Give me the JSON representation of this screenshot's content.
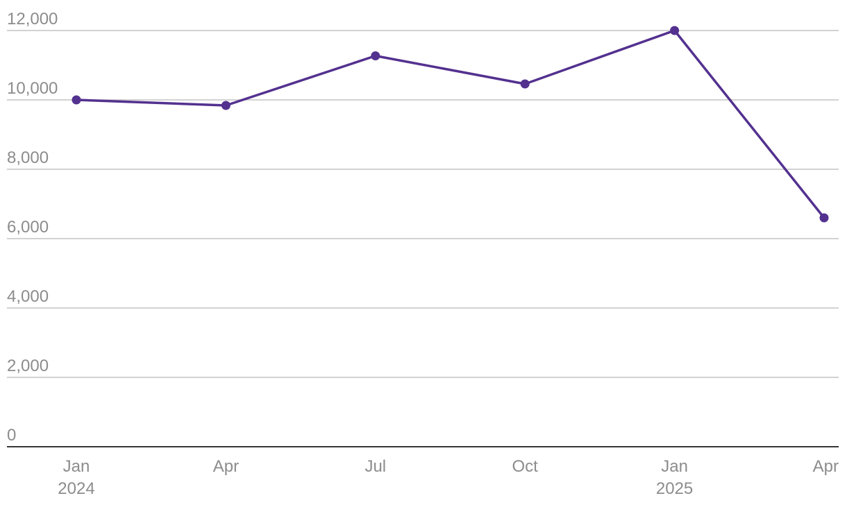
{
  "chart_data": {
    "type": "line",
    "title": "",
    "xlabel": "",
    "ylabel": "",
    "x": [
      "2024-01",
      "2024-04",
      "2024-07",
      "2024-10",
      "2025-01",
      "2025-04"
    ],
    "x_tick_labels": [
      {
        "month": "Jan",
        "year": "2024"
      },
      {
        "month": "Apr",
        "year": ""
      },
      {
        "month": "Jul",
        "year": ""
      },
      {
        "month": "Oct",
        "year": ""
      },
      {
        "month": "Jan",
        "year": "2025"
      },
      {
        "month": "Apr",
        "year": ""
      }
    ],
    "series": [
      {
        "values": [
          10000,
          9840,
          11270,
          10460,
          12000,
          6600
        ]
      }
    ],
    "ylim": [
      0,
      12000
    ],
    "y_ticks": [
      0,
      2000,
      4000,
      6000,
      8000,
      10000,
      12000
    ],
    "y_tick_labels": [
      "0",
      "2,000",
      "4,000",
      "6,000",
      "8,000",
      "10,000",
      "12,000"
    ],
    "grid": true,
    "legend": "none",
    "colors": {
      "series": "#53318f",
      "grid": "#c4c4c4",
      "axis": "#1a1a1a",
      "tick_text": "#8c8c8c"
    }
  }
}
